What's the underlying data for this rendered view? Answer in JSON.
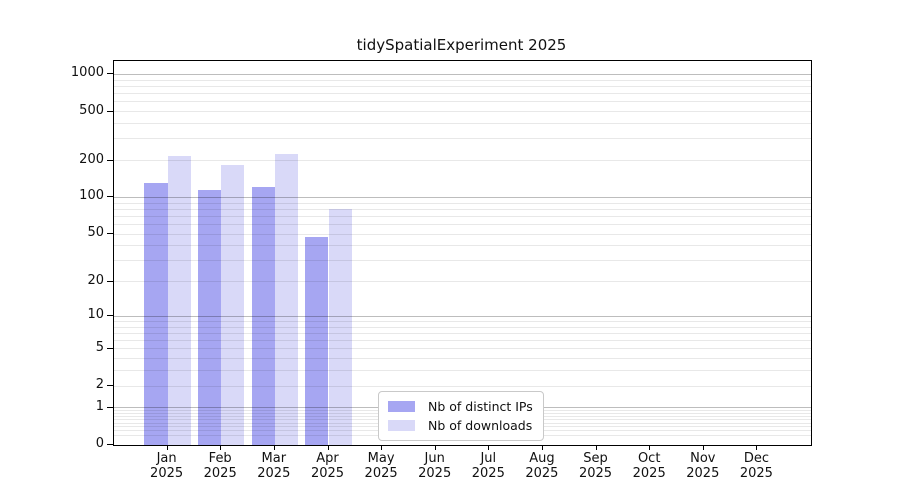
{
  "title": "tidySpatialExperiment 2025",
  "chart_data": {
    "type": "bar",
    "title": "tidySpatialExperiment 2025",
    "categories": [
      "Jan 2025",
      "Feb 2025",
      "Mar 2025",
      "Apr 2025",
      "May 2025",
      "Jun 2025",
      "Jul 2025",
      "Aug 2025",
      "Sep 2025",
      "Oct 2025",
      "Nov 2025",
      "Dec 2025"
    ],
    "series": [
      {
        "name": "Nb of distinct IPs",
        "color": "#a6a6f2",
        "values": [
          131,
          116,
          122,
          47,
          null,
          null,
          null,
          null,
          null,
          null,
          null,
          null
        ]
      },
      {
        "name": "Nb of downloads",
        "color": "#d9d9f8",
        "values": [
          219,
          184,
          228,
          81,
          null,
          null,
          null,
          null,
          null,
          null,
          null,
          null
        ]
      }
    ],
    "xlabel": "",
    "ylabel": "",
    "y_scale": "log1p",
    "y_ticks": [
      0,
      1,
      2,
      5,
      10,
      20,
      50,
      100,
      200,
      500,
      1000
    ],
    "ylim": [
      0,
      1282
    ],
    "grid": "log-minor-and-major, drawn over bars",
    "legend_position": "inside-bottom-center"
  },
  "legend": {
    "items": [
      {
        "label": "Nb of distinct IPs",
        "color": "#a6a6f2"
      },
      {
        "label": "Nb of downloads",
        "color": "#d9d9f8"
      }
    ]
  },
  "colors": {
    "background": "#ffffff",
    "spine": "#000000",
    "major_grid": "rgba(0,0,0,0.26)",
    "minor_grid": "rgba(0,0,0,0.09)",
    "text": "#111111"
  }
}
